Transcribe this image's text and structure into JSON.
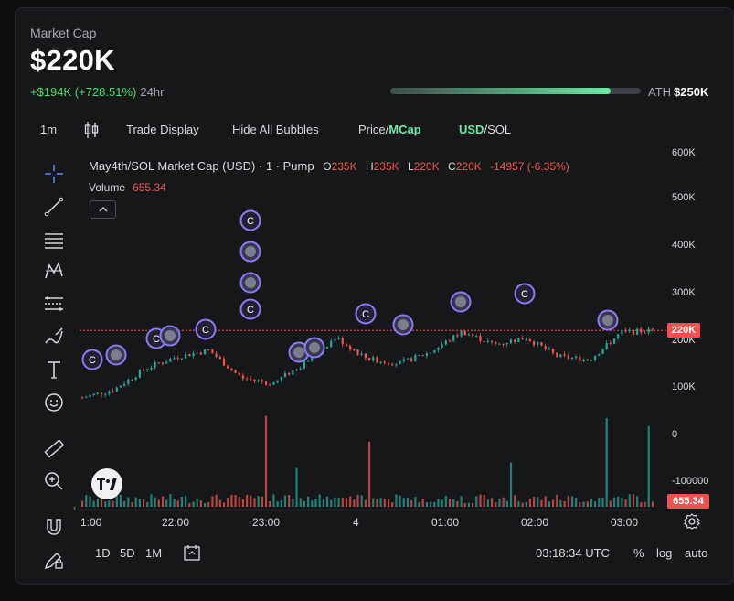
{
  "header": {
    "label": "Market Cap",
    "value": "$220K",
    "change": "+$194K (+728.51%)",
    "period": "24hr",
    "ath_label": "ATH",
    "ath_value": "$250K",
    "ath_progress": 0.88
  },
  "toolbar": {
    "interval": "1m",
    "trade_display": "Trade Display",
    "hide_bubbles": "Hide All Bubbles",
    "price_label": "Price",
    "mcap_label": "MCap",
    "usd_label": "USD",
    "sol_label": "SOL",
    "slash": "/"
  },
  "chart_info": {
    "title": "May4th/SOL Market Cap (USD) · 1 · Pump",
    "o_key": "O",
    "o_val": "235K",
    "h_key": "H",
    "h_val": "235K",
    "l_key": "L",
    "l_val": "220K",
    "c_key": "C",
    "c_val": "220K",
    "change": "-14957 (-6.35%)",
    "volume_label": "Volume",
    "volume_value": "655.34"
  },
  "axis": {
    "y_ticks": [
      "600K",
      "500K",
      "400K",
      "300K",
      "200K",
      "100K",
      "0",
      "-100000"
    ],
    "x_ticks": [
      "1:00",
      "22:00",
      "23:00",
      "4",
      "01:00",
      "02:00",
      "03:00"
    ],
    "price_tag": "220K",
    "volume_tag": "655.34"
  },
  "bottom": {
    "range_1d": "1D",
    "range_5d": "5D",
    "range_1m": "1M",
    "time": "03:18:34 UTC",
    "pct": "%",
    "log": "log",
    "auto": "auto"
  },
  "bubbles": {
    "letter": "C"
  },
  "chart_data": {
    "type": "candlestick",
    "x": [
      "1:00",
      "22:00",
      "23:00",
      "4",
      "01:00",
      "02:00",
      "03:00"
    ],
    "ylim": [
      -120000,
      600000
    ],
    "close_series": [
      78000,
      95000,
      140000,
      165000,
      178000,
      120000,
      108000,
      150000,
      205000,
      160000,
      150000,
      175000,
      218000,
      190000,
      205000,
      165000,
      158000,
      215000,
      220000
    ],
    "last_close": 220000,
    "colors": {
      "up": "#26a69a",
      "down": "#ef5350"
    }
  },
  "colors": {
    "accent": "#6ee7a6",
    "up": "#26a69a",
    "down": "#ef5350",
    "bubble_ring": "#8b7cf6"
  }
}
